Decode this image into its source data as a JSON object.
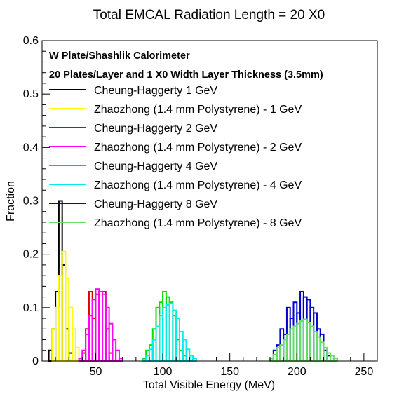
{
  "chart_data": {
    "type": "histogram",
    "title": "Total EMCAL Radiation Length = 20 X0",
    "xlabel": "Total Visible Energy (MeV)",
    "ylabel": "Fraction",
    "xlim": [
      10,
      260
    ],
    "ylim": [
      0,
      0.6
    ],
    "bin_width": 2.5,
    "x_ticks": [
      50,
      100,
      150,
      200,
      250
    ],
    "y_ticks": [
      0,
      0.1,
      0.2,
      0.3,
      0.4,
      0.5,
      0.6
    ],
    "y_tick_labels": [
      "0",
      "0.1",
      "0.2",
      "0.3",
      "0.4",
      "0.5",
      "0.6"
    ],
    "annotations": [
      "W Plate/Shashlik Calorimeter",
      "20 Plates/Layer and 1 X0 Width Layer Thickness (3.5mm)"
    ],
    "legend_position": "top-left",
    "series": [
      {
        "name": "Cheung-Haggerty 1 GeV",
        "color": "#000000",
        "x0": 15,
        "values": [
          0.02,
          0.06,
          0.13,
          0.3,
          0.18,
          0.06,
          0.015
        ]
      },
      {
        "name": "Zhaozhong (1.4 mm Polystyrene) - 1 GeV",
        "color": "#ffff00",
        "x0": 15,
        "values": [
          0.0,
          0.06,
          0.1,
          0.16,
          0.205,
          0.155,
          0.1,
          0.06,
          0.025,
          0.005
        ]
      },
      {
        "name": "Cheung-Haggerty 2 GeV",
        "color": "#dd0000",
        "x0": 40,
        "values": [
          0.015,
          0.06,
          0.13,
          0.08,
          0.125,
          0.13,
          0.13,
          0.06,
          0.015
        ]
      },
      {
        "name": "Zhaozhong (1.4 mm Polystyrene) - 2 GeV",
        "color": "#ff00ff",
        "x0": 37.5,
        "values": [
          0.005,
          0.02,
          0.05,
          0.085,
          0.115,
          0.135,
          0.13,
          0.125,
          0.1,
          0.07,
          0.04,
          0.02,
          0.005
        ]
      },
      {
        "name": "Cheung-Haggerty 4 GeV",
        "color": "#00e000",
        "x0": 85,
        "values": [
          0.005,
          0.02,
          0.03,
          0.06,
          0.1,
          0.11,
          0.13,
          0.12,
          0.11,
          0.085,
          0.04,
          0.02,
          0.01
        ]
      },
      {
        "name": "Zhaozhong (1.4 mm Polystyrene) - 4 GeV",
        "color": "#00eeee",
        "x0": 85,
        "values": [
          0.002,
          0.01,
          0.022,
          0.04,
          0.065,
          0.085,
          0.1,
          0.105,
          0.108,
          0.095,
          0.08,
          0.055,
          0.04,
          0.022,
          0.01,
          0.005
        ]
      },
      {
        "name": "Cheung-Haggerty 8 GeV",
        "color": "#0000cc",
        "x0": 180,
        "values": [
          0.005,
          0.02,
          0.03,
          0.06,
          0.05,
          0.1,
          0.08,
          0.11,
          0.09,
          0.13,
          0.12,
          0.115,
          0.1,
          0.09,
          0.06,
          0.05,
          0.02,
          0.01
        ]
      },
      {
        "name": "Zhaozhong (1.4 mm Polystyrene) - 8 GeV",
        "color": "#66dd66",
        "x0": 180,
        "values": [
          0.005,
          0.012,
          0.025,
          0.03,
          0.04,
          0.05,
          0.06,
          0.065,
          0.07,
          0.075,
          0.078,
          0.072,
          0.065,
          0.055,
          0.045,
          0.035,
          0.025,
          0.015,
          0.01,
          0.005
        ]
      }
    ]
  }
}
